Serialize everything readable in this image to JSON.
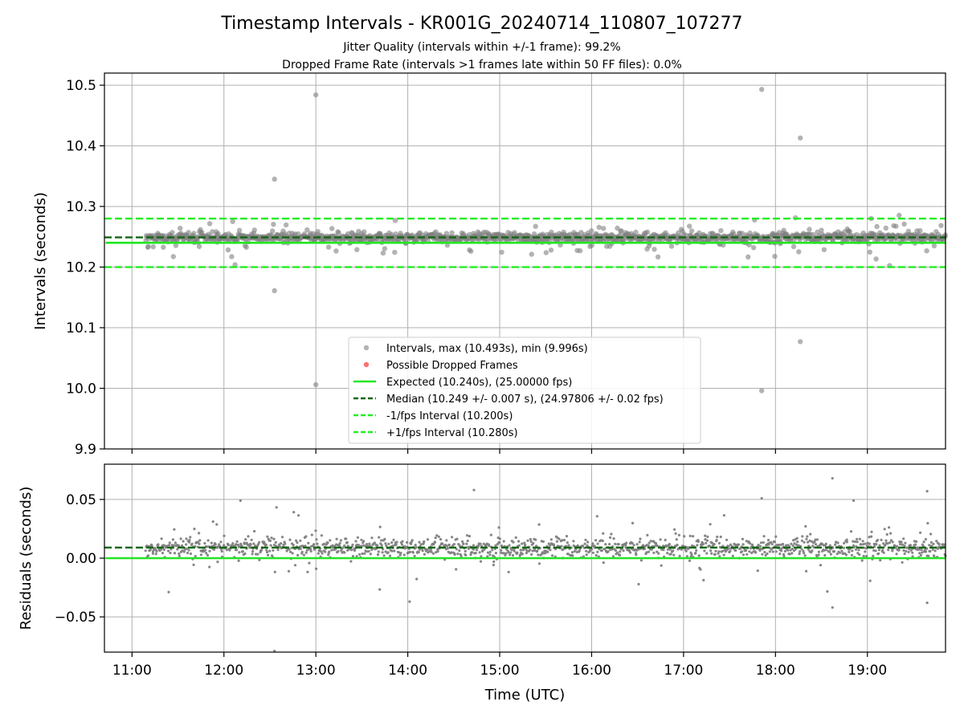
{
  "figure": {
    "title": "Timestamp Intervals - KR001G_20240714_110807_107277",
    "subtitle_line1": "Jitter Quality (intervals within +/-1 frame): 99.2%",
    "subtitle_line2": "Dropped Frame Rate (intervals >1 frames late within 50 FF files): 0.0%"
  },
  "colors": {
    "points": "#808080",
    "dropped": "#ff4d4d",
    "expected": "#22e622",
    "median": "#116611",
    "interval_lines": "#22ee22",
    "grid": "#b0b0b0"
  },
  "chart_data": [
    {
      "type": "scatter",
      "ylabel": "Intervals (seconds)",
      "xlabel": "",
      "xlim": [
        10.7,
        19.85
      ],
      "ylim": [
        9.9,
        10.52
      ],
      "xticks": [
        11,
        12,
        13,
        14,
        15,
        16,
        17,
        18,
        19
      ],
      "xtick_labels": [
        "11:00",
        "12:00",
        "13:00",
        "14:00",
        "15:00",
        "16:00",
        "17:00",
        "18:00",
        "19:00"
      ],
      "yticks": [
        9.9,
        10.0,
        10.1,
        10.2,
        10.3,
        10.4,
        10.5
      ],
      "ytick_labels": [
        "9.9",
        "10.0",
        "10.1",
        "10.2",
        "10.3",
        "10.4",
        "10.5"
      ],
      "grid": true,
      "legend_placement": "lower-center",
      "data_span": [
        11.15,
        19.85
      ],
      "bulk_center": 10.249,
      "bulk_spread": 0.007,
      "series": [
        {
          "name": "Intervals, max (10.493s), min (9.996s)",
          "kind": "points"
        },
        {
          "name": "Possible Dropped Frames",
          "kind": "dropped",
          "points": []
        },
        {
          "name": "Expected (10.240s), (25.00000 fps)",
          "kind": "hline",
          "y": 10.24,
          "x_start": 11.15
        },
        {
          "name": "Median (10.249 +/- 0.007 s), (24.97806 +/- 0.02 fps)",
          "kind": "hline-dashed",
          "y": 10.249
        },
        {
          "name": "-1/fps Interval (10.200s)",
          "kind": "hline-dashed",
          "y": 10.2
        },
        {
          "name": "+1/fps Interval (10.280s)",
          "kind": "hline-dashed",
          "y": 10.28
        }
      ],
      "outliers": [
        {
          "x": 12.55,
          "y": 10.345
        },
        {
          "x": 12.55,
          "y": 10.161
        },
        {
          "x": 13.0,
          "y": 10.484
        },
        {
          "x": 13.0,
          "y": 10.006
        },
        {
          "x": 17.85,
          "y": 10.493
        },
        {
          "x": 17.85,
          "y": 9.996
        },
        {
          "x": 18.27,
          "y": 10.413
        },
        {
          "x": 18.27,
          "y": 10.077
        }
      ]
    },
    {
      "type": "scatter",
      "ylabel": "Residuals (seconds)",
      "xlabel": "Time (UTC)",
      "xlim": [
        10.7,
        19.85
      ],
      "ylim": [
        -0.08,
        0.08
      ],
      "xticks": [
        11,
        12,
        13,
        14,
        15,
        16,
        17,
        18,
        19
      ],
      "xtick_labels": [
        "11:00",
        "12:00",
        "13:00",
        "14:00",
        "15:00",
        "16:00",
        "17:00",
        "18:00",
        "19:00"
      ],
      "yticks": [
        -0.05,
        0.0,
        0.05
      ],
      "ytick_labels": [
        "−0.05",
        "0.00",
        "0.05"
      ],
      "grid": true,
      "data_span": [
        11.15,
        19.85
      ],
      "bulk_center": 0.009,
      "bulk_spread": 0.007,
      "series": [
        {
          "kind": "points"
        },
        {
          "kind": "hline",
          "y": 0.0,
          "x_start": 11.15
        },
        {
          "kind": "hline-dashed",
          "y": 0.009
        }
      ],
      "outliers": [
        {
          "x": 12.55,
          "y": -0.079
        },
        {
          "x": 18.62,
          "y": 0.068
        },
        {
          "x": 14.72,
          "y": 0.058
        },
        {
          "x": 19.65,
          "y": 0.057
        },
        {
          "x": 17.85,
          "y": 0.051
        },
        {
          "x": 12.18,
          "y": 0.049
        },
        {
          "x": 18.85,
          "y": 0.049
        },
        {
          "x": 18.62,
          "y": -0.042
        },
        {
          "x": 19.65,
          "y": -0.038
        },
        {
          "x": 14.02,
          "y": -0.037
        }
      ]
    }
  ]
}
